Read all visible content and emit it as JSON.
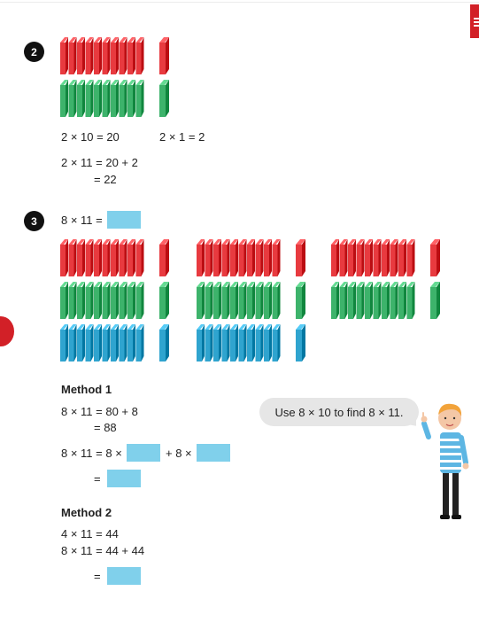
{
  "page": {
    "tab_icon": "menu-icon",
    "accent": "#d22027",
    "colors": {
      "red": "#e83a3f",
      "green": "#3db36b",
      "blue": "#2fa4cf",
      "blank": "#80d0eb"
    }
  },
  "q2": {
    "number": "2",
    "eq1": "2 × 10 = 20",
    "eq2": "2 × 1 = 2",
    "eq3": "2 × 11 = 20 + 2",
    "eq4": "= 22",
    "groups": {
      "tens_rows": [
        "red",
        "green"
      ],
      "ones": 1
    }
  },
  "q3": {
    "number": "3",
    "prompt": "8 × 11 =",
    "groups": [
      {
        "rows": [
          "red",
          "green",
          "blue"
        ]
      },
      {
        "rows": [
          "red",
          "green",
          "blue"
        ]
      },
      {
        "rows": [
          "red",
          "green"
        ]
      }
    ],
    "method1": {
      "title": "Method 1",
      "line1": "8 × 11 = 80 + 8",
      "line2": "= 88",
      "line3_a": "8 × 11 = 8 ×",
      "line3_b": "+ 8 ×",
      "line4": "="
    },
    "method2": {
      "title": "Method 2",
      "line1": "4 × 11 = 44",
      "line2": "8 × 11 = 44 + 44",
      "line3": "="
    },
    "hint": "Use 8 × 10 to find 8 × 11."
  }
}
